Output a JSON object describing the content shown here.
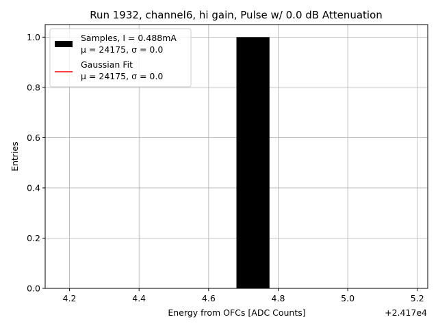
{
  "chart_data": {
    "type": "bar",
    "title": "Run 1932, channel6, hi gain, Pulse w/ 0.0 dB Attenuation",
    "xlabel": "Energy from OFCs [ADC Counts]",
    "ylabel": "Entries",
    "x_offset_label": "+2.417e4",
    "xlim": [
      4.13,
      5.23
    ],
    "ylim": [
      0,
      1.05
    ],
    "xticks": [
      4.2,
      4.4,
      4.6,
      4.8,
      5.0,
      5.2
    ],
    "xtick_labels": [
      "4.2",
      "4.4",
      "4.6",
      "4.8",
      "5.0",
      "5.2"
    ],
    "yticks": [
      0.0,
      0.2,
      0.4,
      0.6,
      0.8,
      1.0
    ],
    "ytick_labels": [
      "0.0",
      "0.2",
      "0.4",
      "0.6",
      "0.8",
      "1.0"
    ],
    "grid": true,
    "bars": [
      {
        "x_start": 4.68,
        "x_end": 4.775,
        "value": 1.0
      }
    ],
    "series": [
      {
        "name": "Samples, I = 0.488mA",
        "stats": "μ = 24175, σ = 0.0",
        "color": "#000000",
        "kind": "bar"
      },
      {
        "name": "Gaussian Fit",
        "stats": "μ = 24175, σ = 0.0",
        "color": "#ff0000",
        "kind": "line"
      }
    ],
    "legend_position": "top-left"
  }
}
